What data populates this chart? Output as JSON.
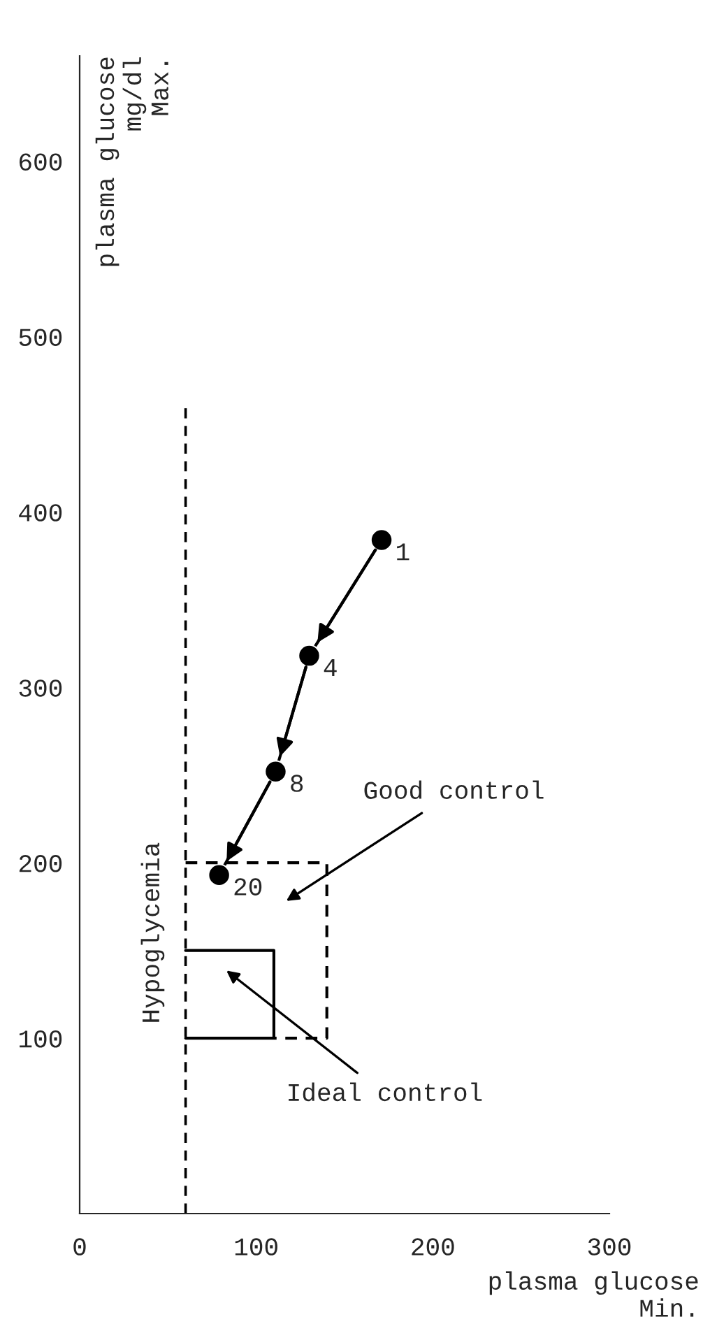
{
  "chart_data": {
    "type": "line",
    "xlabel": "plasma glucose\nMin.",
    "ylabel": "plasma glucose\nmg/dl\nMax.",
    "xlim": [
      0,
      300
    ],
    "ylim": [
      0,
      660
    ],
    "xticks": [
      0,
      100,
      200,
      300
    ],
    "yticks": [
      100,
      200,
      300,
      400,
      500,
      600
    ],
    "grid": false,
    "marker": "circle",
    "series": [
      {
        "color": "#000000",
        "x": [
          171,
          130,
          111,
          79
        ],
        "values": [
          384,
          318,
          252,
          193
        ],
        "line_style": "solid"
      },
      {
        "color": "#000000",
        "x": [
          60,
          140,
          140,
          110
        ],
        "values": [
          200,
          200,
          100,
          100
        ],
        "marker": "none",
        "line_style": "dashed"
      },
      {
        "color": "#000000",
        "x": [
          60,
          110,
          110,
          60
        ],
        "values": [
          100,
          100,
          150,
          150
        ],
        "marker": "none",
        "line_style": "solid"
      }
    ],
    "ref_lines": [
      {
        "axis": "x",
        "value": 60,
        "label": "Hypoglycemia",
        "color": "#000000",
        "line_style": "dashed"
      }
    ],
    "annotations": [
      {
        "text": "1",
        "x": 171,
        "y": 384
      },
      {
        "text": "4",
        "x": 130,
        "y": 318
      },
      {
        "text": "8",
        "x": 111,
        "y": 252
      },
      {
        "text": "20",
        "x": 79,
        "y": 193
      },
      "Good control",
      "Ideal control"
    ]
  }
}
